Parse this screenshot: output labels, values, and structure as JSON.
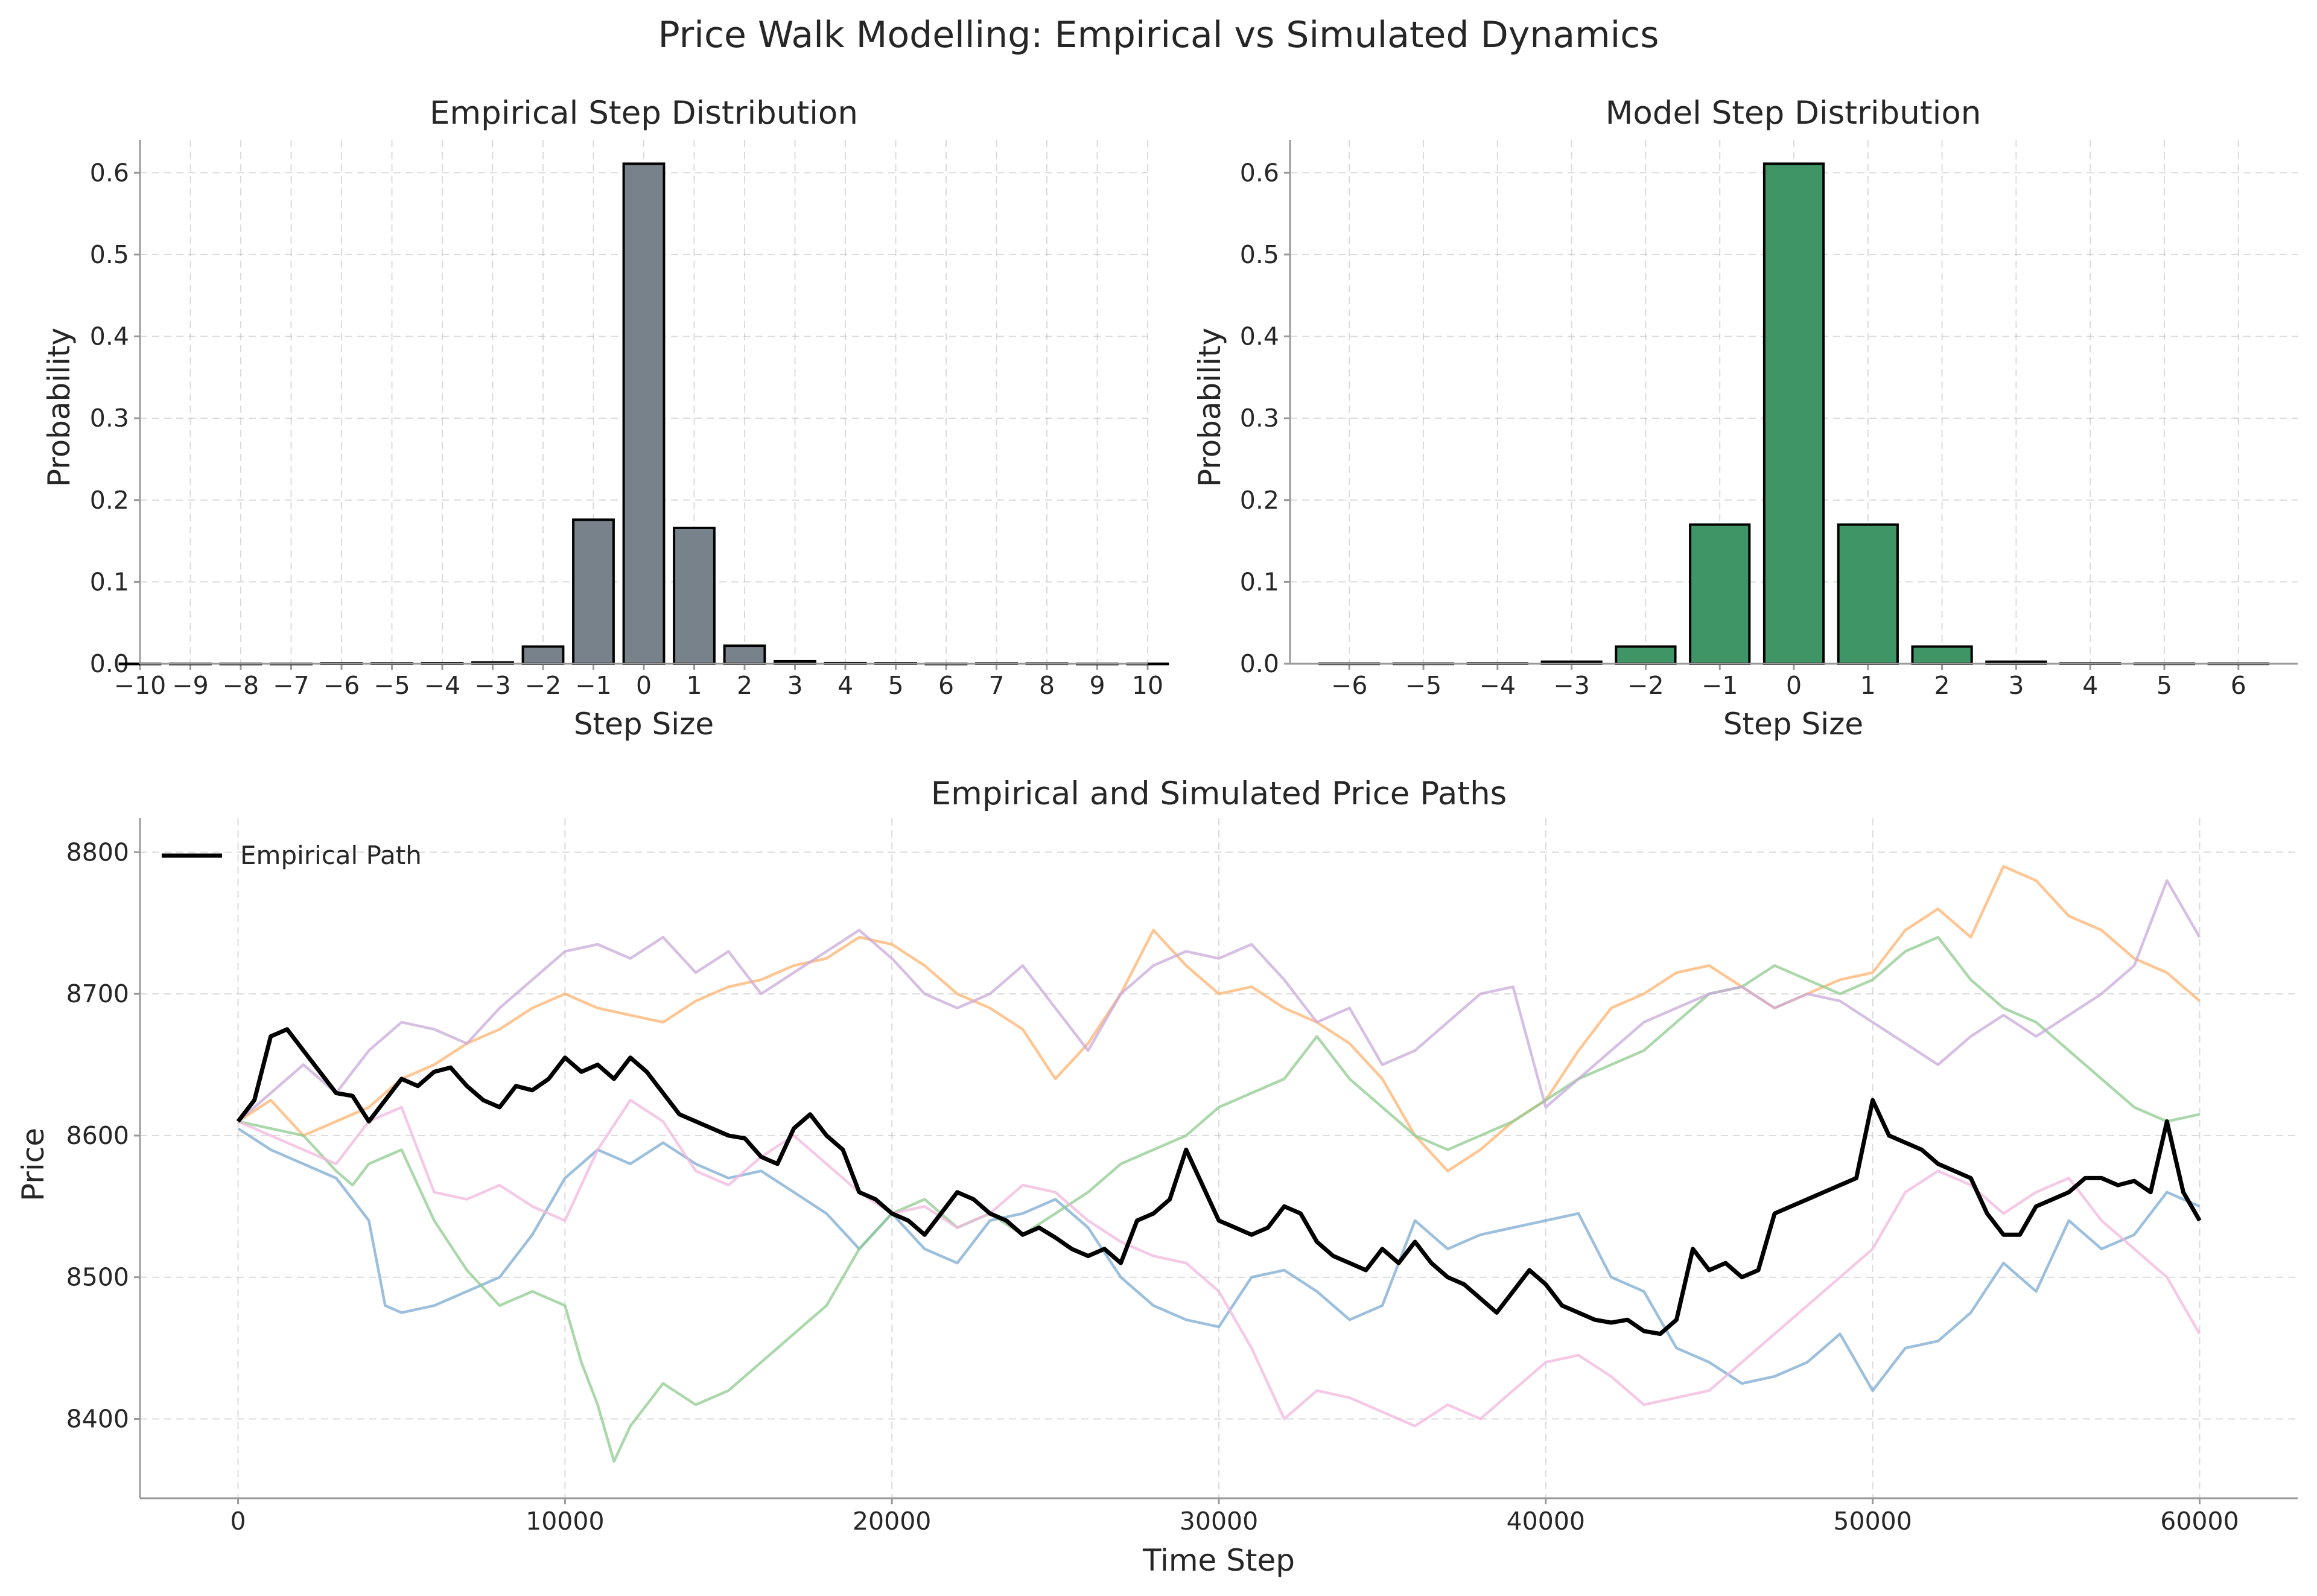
{
  "figure": {
    "suptitle": "Price Walk Modelling: Empirical vs Simulated Dynamics"
  },
  "chart_data": [
    {
      "type": "bar",
      "title": "Empirical Step Distribution",
      "xlabel": "Step Size",
      "ylabel": "Probability",
      "xlim": [
        -10,
        10
      ],
      "ylim": [
        0,
        0.64
      ],
      "x_ticks": [
        -10,
        -9,
        -8,
        -7,
        -6,
        -5,
        -4,
        -3,
        -2,
        -1,
        0,
        1,
        2,
        3,
        4,
        5,
        6,
        7,
        8,
        9,
        10
      ],
      "y_ticks": [
        0.0,
        0.1,
        0.2,
        0.3,
        0.4,
        0.5,
        0.6
      ],
      "bar_color": "#78828a",
      "edge_color": "#000000",
      "grid": true,
      "categories": [
        -10,
        -9,
        -8,
        -7,
        -6,
        -5,
        -4,
        -3,
        -2,
        -1,
        0,
        1,
        2,
        3,
        4,
        5,
        6,
        7,
        8,
        9,
        10
      ],
      "values": [
        0.0,
        0.0,
        0.0,
        0.0,
        0.0005,
        0.0005,
        0.0007,
        0.0015,
        0.021,
        0.176,
        0.611,
        0.166,
        0.022,
        0.003,
        0.0008,
        0.0006,
        0.0,
        0.0004,
        0.0003,
        0.0,
        0.0
      ]
    },
    {
      "type": "bar",
      "title": "Model Step Distribution",
      "xlabel": "Step Size",
      "ylabel": "Probability",
      "xlim": [
        -6.8,
        6.8
      ],
      "ylim": [
        0,
        0.64
      ],
      "x_ticks": [
        -6,
        -5,
        -4,
        -3,
        -2,
        -1,
        0,
        1,
        2,
        3,
        4,
        5,
        6
      ],
      "y_ticks": [
        0.0,
        0.1,
        0.2,
        0.3,
        0.4,
        0.5,
        0.6
      ],
      "bar_color": "#3f9566",
      "edge_color": "#000000",
      "grid": true,
      "categories": [
        -6,
        -5,
        -4,
        -3,
        -2,
        -1,
        0,
        1,
        2,
        3,
        4,
        5,
        6
      ],
      "values": [
        0.0002,
        0.0002,
        0.0004,
        0.0025,
        0.021,
        0.17,
        0.611,
        0.17,
        0.021,
        0.0025,
        0.0004,
        0.0002,
        0.0002
      ]
    },
    {
      "type": "line",
      "title": "Empirical and Simulated Price Paths",
      "xlabel": "Time Step",
      "ylabel": "Price",
      "xlim": [
        -3000,
        63000
      ],
      "ylim": [
        8344,
        8824
      ],
      "x_ticks": [
        0,
        10000,
        20000,
        30000,
        40000,
        50000,
        60000
      ],
      "y_ticks": [
        8400,
        8500,
        8600,
        8700,
        8800
      ],
      "grid": true,
      "legend_position": "top-left",
      "series": [
        {
          "name": "Empirical Path",
          "color": "#000000",
          "in_legend": true,
          "x": [
            0,
            500,
            1000,
            1500,
            2000,
            2500,
            3000,
            3500,
            4000,
            4500,
            5000,
            5500,
            6000,
            6500,
            7000,
            7500,
            8000,
            8500,
            9000,
            9500,
            10000,
            10500,
            11000,
            11500,
            12000,
            12500,
            13000,
            13500,
            14000,
            14500,
            15000,
            15500,
            16000,
            16500,
            17000,
            17500,
            18000,
            18500,
            19000,
            19500,
            20000,
            20500,
            21000,
            21500,
            22000,
            22500,
            23000,
            23500,
            24000,
            24500,
            25000,
            25500,
            26000,
            26500,
            27000,
            27500,
            28000,
            28500,
            29000,
            29500,
            30000,
            30500,
            31000,
            31500,
            32000,
            32500,
            33000,
            33500,
            34000,
            34500,
            35000,
            35500,
            36000,
            36500,
            37000,
            37500,
            38000,
            38500,
            39000,
            39500,
            40000,
            40500,
            41000,
            41500,
            42000,
            42500,
            43000,
            43500,
            44000,
            44500,
            45000,
            45500,
            46000,
            46500,
            47000,
            47500,
            48000,
            48500,
            49000,
            49500,
            50000,
            50500,
            51000,
            51500,
            52000,
            52500,
            53000,
            53500,
            54000,
            54500,
            55000,
            55500,
            56000,
            56500,
            57000,
            57500,
            58000,
            58500,
            59000,
            59500,
            60000
          ],
          "y": [
            8610,
            8625,
            8670,
            8675,
            8660,
            8645,
            8630,
            8628,
            8610,
            8625,
            8640,
            8635,
            8645,
            8648,
            8635,
            8625,
            8620,
            8635,
            8632,
            8640,
            8655,
            8645,
            8650,
            8640,
            8655,
            8645,
            8630,
            8615,
            8610,
            8605,
            8600,
            8598,
            8585,
            8580,
            8605,
            8615,
            8600,
            8590,
            8560,
            8555,
            8545,
            8540,
            8530,
            8545,
            8560,
            8555,
            8545,
            8540,
            8530,
            8535,
            8528,
            8520,
            8515,
            8520,
            8510,
            8540,
            8545,
            8555,
            8590,
            8565,
            8540,
            8535,
            8530,
            8535,
            8550,
            8545,
            8525,
            8515,
            8510,
            8505,
            8520,
            8510,
            8525,
            8510,
            8500,
            8495,
            8485,
            8475,
            8490,
            8505,
            8495,
            8480,
            8475,
            8470,
            8468,
            8470,
            8462,
            8460,
            8470,
            8520,
            8505,
            8510,
            8500,
            8505,
            8545,
            8550,
            8555,
            8560,
            8565,
            8570,
            8625,
            8600,
            8595,
            8590,
            8580,
            8575,
            8570,
            8545,
            8530,
            8530,
            8550,
            8555,
            8560,
            8570,
            8570,
            8565,
            8568,
            8560,
            8610,
            8560,
            8540
          ]
        },
        {
          "name": "",
          "color": "#7aaad0",
          "in_legend": false,
          "x": [
            0,
            1000,
            2000,
            3000,
            4000,
            4500,
            5000,
            6000,
            7000,
            8000,
            9000,
            10000,
            11000,
            12000,
            13000,
            14000,
            15000,
            16000,
            17000,
            18000,
            19000,
            20000,
            21000,
            22000,
            23000,
            24000,
            25000,
            26000,
            27000,
            28000,
            29000,
            30000,
            31000,
            32000,
            33000,
            34000,
            35000,
            36000,
            37000,
            38000,
            39000,
            40000,
            41000,
            42000,
            43000,
            44000,
            45000,
            46000,
            47000,
            48000,
            49000,
            50000,
            51000,
            52000,
            53000,
            54000,
            55000,
            56000,
            57000,
            58000,
            59000,
            60000
          ],
          "y": [
            8605,
            8590,
            8580,
            8570,
            8540,
            8480,
            8475,
            8480,
            8490,
            8500,
            8530,
            8570,
            8590,
            8580,
            8595,
            8580,
            8570,
            8575,
            8560,
            8545,
            8520,
            8545,
            8520,
            8510,
            8540,
            8545,
            8555,
            8535,
            8500,
            8480,
            8470,
            8465,
            8500,
            8505,
            8490,
            8470,
            8480,
            8540,
            8520,
            8530,
            8535,
            8540,
            8545,
            8500,
            8490,
            8450,
            8440,
            8425,
            8430,
            8440,
            8460,
            8420,
            8450,
            8455,
            8475,
            8510,
            8490,
            8540,
            8520,
            8530,
            8560,
            8550
          ]
        },
        {
          "name": "",
          "color": "#ffb26e",
          "in_legend": false,
          "x": [
            0,
            1000,
            2000,
            3000,
            4000,
            5000,
            6000,
            7000,
            8000,
            9000,
            10000,
            11000,
            12000,
            13000,
            14000,
            15000,
            16000,
            17000,
            18000,
            19000,
            20000,
            21000,
            22000,
            23000,
            24000,
            25000,
            26000,
            27000,
            28000,
            29000,
            30000,
            31000,
            32000,
            33000,
            34000,
            35000,
            36000,
            37000,
            38000,
            39000,
            40000,
            41000,
            42000,
            43000,
            44000,
            45000,
            46000,
            47000,
            48000,
            49000,
            50000,
            51000,
            52000,
            53000,
            54000,
            55000,
            56000,
            57000,
            58000,
            59000,
            60000
          ],
          "y": [
            8610,
            8625,
            8600,
            8610,
            8620,
            8640,
            8650,
            8665,
            8675,
            8690,
            8700,
            8690,
            8685,
            8680,
            8695,
            8705,
            8710,
            8720,
            8725,
            8740,
            8735,
            8720,
            8700,
            8690,
            8675,
            8640,
            8665,
            8700,
            8745,
            8720,
            8700,
            8705,
            8690,
            8680,
            8665,
            8640,
            8600,
            8575,
            8590,
            8610,
            8625,
            8660,
            8690,
            8700,
            8715,
            8720,
            8705,
            8690,
            8700,
            8710,
            8715,
            8745,
            8760,
            8740,
            8790,
            8780,
            8755,
            8745,
            8725,
            8715,
            8695
          ]
        },
        {
          "name": "",
          "color": "#8fcb8f",
          "in_legend": false,
          "x": [
            0,
            1000,
            2000,
            3000,
            3500,
            4000,
            5000,
            6000,
            7000,
            8000,
            9000,
            10000,
            10500,
            11000,
            11500,
            12000,
            13000,
            14000,
            15000,
            16000,
            17000,
            18000,
            19000,
            20000,
            21000,
            22000,
            23000,
            24000,
            25000,
            26000,
            27000,
            28000,
            29000,
            30000,
            31000,
            32000,
            33000,
            34000,
            35000,
            36000,
            37000,
            38000,
            39000,
            40000,
            41000,
            42000,
            43000,
            44000,
            45000,
            46000,
            47000,
            48000,
            49000,
            50000,
            51000,
            52000,
            53000,
            54000,
            55000,
            56000,
            57000,
            58000,
            59000,
            60000
          ],
          "y": [
            8610,
            8605,
            8600,
            8575,
            8565,
            8580,
            8590,
            8540,
            8505,
            8480,
            8490,
            8480,
            8440,
            8410,
            8370,
            8395,
            8425,
            8410,
            8420,
            8440,
            8460,
            8480,
            8520,
            8545,
            8555,
            8535,
            8545,
            8530,
            8545,
            8560,
            8580,
            8590,
            8600,
            8620,
            8630,
            8640,
            8670,
            8640,
            8620,
            8600,
            8590,
            8600,
            8610,
            8625,
            8640,
            8650,
            8660,
            8680,
            8700,
            8705,
            8720,
            8710,
            8700,
            8710,
            8730,
            8740,
            8710,
            8690,
            8680,
            8660,
            8640,
            8620,
            8610,
            8615
          ]
        },
        {
          "name": "",
          "color": "#c8a9da",
          "in_legend": false,
          "x": [
            0,
            1000,
            2000,
            3000,
            4000,
            5000,
            6000,
            7000,
            8000,
            9000,
            10000,
            11000,
            12000,
            13000,
            14000,
            15000,
            16000,
            17000,
            18000,
            19000,
            20000,
            21000,
            22000,
            23000,
            24000,
            25000,
            26000,
            27000,
            28000,
            29000,
            30000,
            31000,
            32000,
            33000,
            34000,
            35000,
            36000,
            37000,
            38000,
            39000,
            40000,
            41000,
            42000,
            43000,
            44000,
            45000,
            46000,
            47000,
            48000,
            49000,
            50000,
            51000,
            52000,
            53000,
            54000,
            55000,
            56000,
            57000,
            58000,
            59000,
            60000
          ],
          "y": [
            8610,
            8630,
            8650,
            8630,
            8660,
            8680,
            8675,
            8665,
            8690,
            8710,
            8730,
            8735,
            8725,
            8740,
            8715,
            8730,
            8700,
            8715,
            8730,
            8745,
            8725,
            8700,
            8690,
            8700,
            8720,
            8690,
            8660,
            8700,
            8720,
            8730,
            8725,
            8735,
            8710,
            8680,
            8690,
            8650,
            8660,
            8680,
            8700,
            8705,
            8620,
            8640,
            8660,
            8680,
            8690,
            8700,
            8705,
            8690,
            8700,
            8695,
            8680,
            8665,
            8650,
            8670,
            8685,
            8670,
            8685,
            8700,
            8720,
            8780,
            8740
          ]
        },
        {
          "name": "",
          "color": "#f1b7de",
          "in_legend": false,
          "x": [
            0,
            1000,
            2000,
            3000,
            4000,
            5000,
            6000,
            7000,
            8000,
            9000,
            10000,
            11000,
            12000,
            13000,
            14000,
            15000,
            16000,
            17000,
            18000,
            19000,
            20000,
            21000,
            22000,
            23000,
            24000,
            25000,
            26000,
            27000,
            28000,
            29000,
            30000,
            31000,
            32000,
            33000,
            34000,
            35000,
            36000,
            37000,
            38000,
            39000,
            40000,
            41000,
            42000,
            43000,
            44000,
            45000,
            46000,
            47000,
            48000,
            49000,
            50000,
            51000,
            52000,
            53000,
            54000,
            55000,
            56000,
            57000,
            58000,
            59000,
            60000
          ],
          "y": [
            8610,
            8600,
            8590,
            8580,
            8610,
            8620,
            8560,
            8555,
            8565,
            8550,
            8540,
            8590,
            8625,
            8610,
            8575,
            8565,
            8585,
            8600,
            8580,
            8560,
            8545,
            8550,
            8535,
            8545,
            8565,
            8560,
            8540,
            8525,
            8515,
            8510,
            8490,
            8450,
            8400,
            8420,
            8415,
            8405,
            8395,
            8410,
            8400,
            8420,
            8440,
            8445,
            8430,
            8410,
            8415,
            8420,
            8440,
            8460,
            8480,
            8500,
            8520,
            8560,
            8575,
            8565,
            8545,
            8560,
            8570,
            8540,
            8520,
            8500,
            8460
          ]
        }
      ]
    }
  ]
}
